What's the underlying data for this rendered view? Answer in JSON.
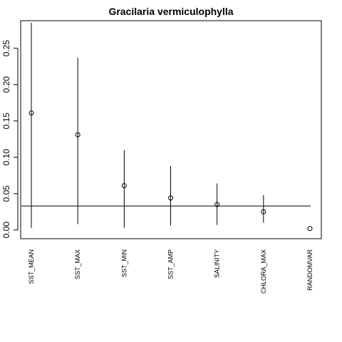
{
  "chart_data": {
    "type": "scatter",
    "title": "Gracilaria vermiculophylla",
    "xlabel": "",
    "ylabel": "",
    "categories": [
      "SST_MEAN",
      "SST_MAX",
      "SST_MIN",
      "SST_AMP",
      "SALINITY",
      "CHLORA_MAX",
      "RANDOMVAR"
    ],
    "values": [
      0.161,
      0.131,
      0.061,
      0.044,
      0.035,
      0.025,
      0.002
    ],
    "lower": [
      0.003,
      0.008,
      0.003,
      0.006,
      0.007,
      0.01,
      null
    ],
    "upper": [
      0.285,
      0.237,
      0.11,
      0.088,
      0.064,
      0.048,
      null
    ],
    "reference_line": 0.033,
    "yticks": [
      0.0,
      0.05,
      0.1,
      0.15,
      0.2,
      0.25
    ],
    "ytick_labels": [
      "0.00",
      "0.05",
      "0.10",
      "0.15",
      "0.20",
      "0.25"
    ],
    "ylim": [
      -0.012,
      0.288
    ],
    "grid": false,
    "legend": "none",
    "colors": {
      "points": "#000000",
      "lines": "#000000"
    }
  }
}
